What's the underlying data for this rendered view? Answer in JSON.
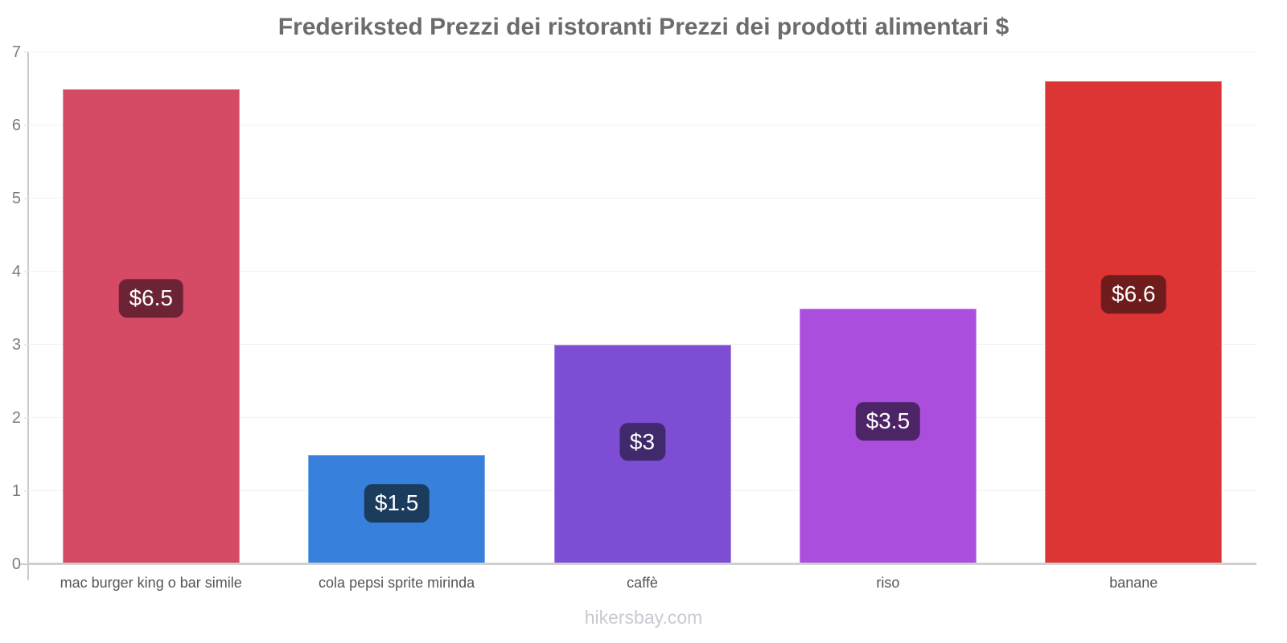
{
  "chart_data": {
    "type": "bar",
    "title": "Frederiksted Prezzi dei ristoranti Prezzi dei prodotti alimentari $",
    "categories": [
      "mac burger king o bar simile",
      "cola pepsi sprite mirinda",
      "caffè",
      "riso",
      "banane"
    ],
    "values": [
      6.5,
      1.5,
      3,
      3.5,
      6.6
    ],
    "value_labels": [
      "$6.5",
      "$1.5",
      "$3",
      "$3.5",
      "$6.6"
    ],
    "bar_colors": [
      "#d54a64",
      "#3781dd",
      "#7d4dd4",
      "#ab4edd",
      "#dd3434"
    ],
    "badge_colors": [
      "#6d2336",
      "#1c3c5e",
      "#402a6c",
      "#4d2566",
      "#6e1c1c"
    ],
    "currency": "$",
    "xlabel": "",
    "ylabel": "",
    "ylim": [
      0,
      7
    ],
    "yticks": [
      0,
      1,
      2,
      3,
      4,
      5,
      6,
      7
    ],
    "grid": true,
    "legend": "none"
  },
  "footer": {
    "watermark": "hikersbay.com"
  }
}
